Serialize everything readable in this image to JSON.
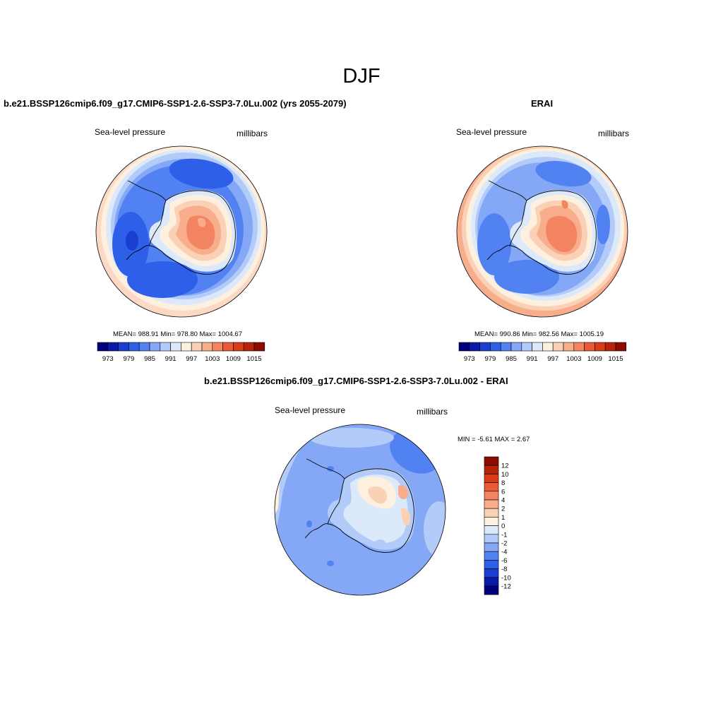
{
  "figure": {
    "season": "DJF"
  },
  "panels": [
    {
      "title": "b.e21.BSSP126cmip6.f09_g17.CMIP6-SSP1-2.6-SSP3-7.0Lu.002 (yrs 2055-2079)",
      "left_label": "Sea-level pressure",
      "right_label": "millibars",
      "stats": "MEAN= 988.91  Min= 978.80  Max= 1004.67"
    },
    {
      "title": "ERAI",
      "left_label": "Sea-level pressure",
      "right_label": "millibars",
      "stats": "MEAN= 990.86  Min= 982.56  Max= 1005.19"
    },
    {
      "title": "b.e21.BSSP126cmip6.f09_g17.CMIP6-SSP1-2.6-SSP3-7.0Lu.002 - ERAI",
      "left_label": "Sea-level pressure",
      "right_label": "millibars",
      "stats": "MIN =  -5.61 MAX =   2.67"
    }
  ],
  "slp_colorbar": {
    "colors": [
      "#00007f",
      "#0a1aa8",
      "#1a3fd0",
      "#2e5fe8",
      "#5282f2",
      "#84a8f6",
      "#b3cbf8",
      "#dce9fb",
      "#fdf0df",
      "#fbd1b6",
      "#f8ad8c",
      "#f38462",
      "#ea5a37",
      "#d93b14",
      "#b7240a",
      "#8c0c02"
    ],
    "labels": [
      "973",
      "979",
      "985",
      "991",
      "997",
      "1003",
      "1009",
      "1015"
    ]
  },
  "diff_colorbar": {
    "colors_top_to_bottom": [
      "#8c0c02",
      "#b7240a",
      "#d93b14",
      "#ea5a37",
      "#f38462",
      "#f8ad8c",
      "#fbd1b6",
      "#fdf0df",
      "#dce9fb",
      "#b3cbf8",
      "#84a8f6",
      "#5282f2",
      "#2e5fe8",
      "#1a3fd0",
      "#0a1aa8",
      "#00007f"
    ],
    "labels_top_to_bottom": [
      "12",
      "10",
      "8",
      "6",
      "4",
      "2",
      "1",
      "0",
      "-1",
      "-2",
      "-4",
      "-6",
      "-8",
      "-10",
      "-12"
    ]
  }
}
